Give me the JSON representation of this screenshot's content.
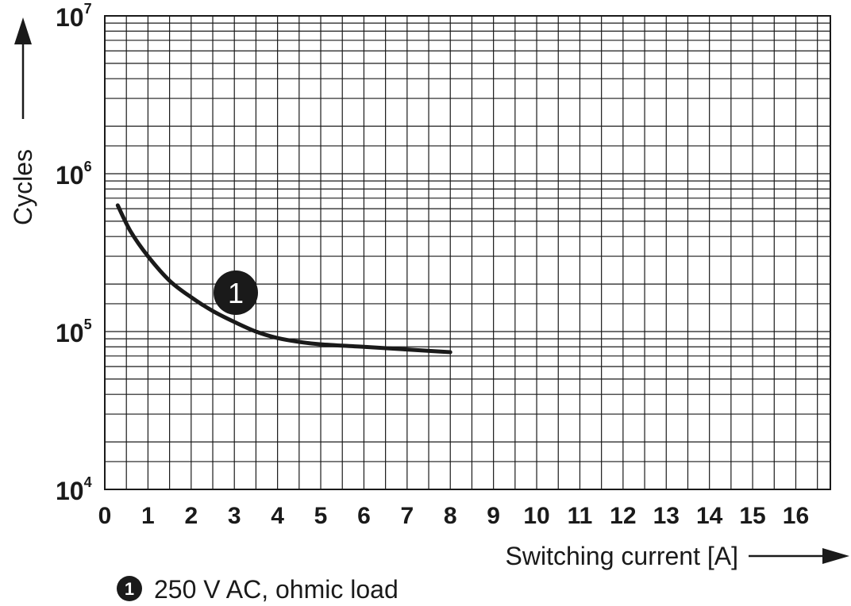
{
  "chart_data": {
    "type": "line",
    "xlabel": "Switching current [A]",
    "ylabel": "Cycles",
    "xlim": [
      0,
      16.8
    ],
    "ylim": [
      10000,
      10000000
    ],
    "y_scale": "log",
    "grid": true,
    "x_ticks": [
      "0",
      "1",
      "2",
      "3",
      "4",
      "5",
      "6",
      "7",
      "8",
      "9",
      "10",
      "11",
      "12",
      "13",
      "14",
      "15",
      "16"
    ],
    "y_ticks": [
      {
        "base": "10",
        "exp": "4"
      },
      {
        "base": "10",
        "exp": "5"
      },
      {
        "base": "10",
        "exp": "6"
      },
      {
        "base": "10",
        "exp": "7"
      }
    ],
    "series": [
      {
        "marker": "1",
        "legend": "250 V AC, ohmic load",
        "color": "#1a1a1a",
        "x": [
          0.3,
          0.6,
          1.0,
          1.5,
          2.0,
          2.5,
          3.0,
          3.5,
          4.0,
          4.5,
          5.0,
          6.0,
          7.0,
          8.0
        ],
        "y": [
          630000,
          430000,
          300000,
          210000,
          165000,
          135000,
          115000,
          100000,
          91000,
          86000,
          83000,
          80000,
          77000,
          74000
        ]
      }
    ]
  }
}
